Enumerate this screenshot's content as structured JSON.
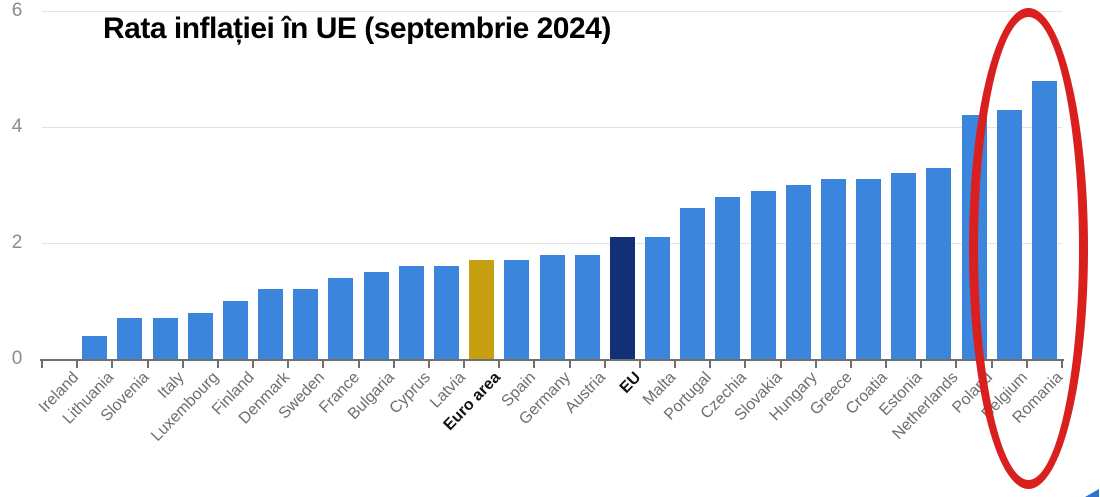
{
  "chart_data": {
    "type": "bar",
    "title": "Rata inflației în UE (septembrie 2024)",
    "xlabel": "",
    "ylabel": "",
    "ylim": [
      0,
      6
    ],
    "yticks": [
      0,
      2,
      4,
      6
    ],
    "grid": true,
    "unit": "percent",
    "legend": "none",
    "categories": [
      "Ireland",
      "Lithuania",
      "Slovenia",
      "Italy",
      "Luxembourg",
      "Finland",
      "Denmark",
      "Sweden",
      "France",
      "Bulgaria",
      "Cyprus",
      "Latvia",
      "Euro area",
      "Spain",
      "Germany",
      "Austria",
      "EU",
      "Malta",
      "Portugal",
      "Czechia",
      "Slovakia",
      "Hungary",
      "Greece",
      "Croatia",
      "Estonia",
      "Netherlands",
      "Poland",
      "Belgium",
      "Romania"
    ],
    "values": [
      0,
      0.4,
      0.7,
      0.7,
      0.8,
      1.0,
      1.2,
      1.2,
      1.4,
      1.5,
      1.6,
      1.6,
      1.7,
      1.7,
      1.8,
      1.8,
      2.1,
      2.1,
      2.6,
      2.8,
      2.9,
      3.0,
      3.1,
      3.1,
      3.2,
      3.3,
      4.2,
      4.3,
      4.8
    ],
    "emphasized_categories": [
      "Euro area",
      "EU"
    ],
    "annotation": {
      "shape": "ellipse",
      "circled_categories": [
        "Belgium",
        "Romania"
      ]
    }
  },
  "colors": {
    "bar_default": "#3c85dc",
    "bar_euro_area": "#c6a010",
    "bar_eu": "#122f78",
    "annotation_red": "#da1f1f",
    "gridline": "#e3e3e3",
    "axis": "#6f6f6f",
    "y_label_gray": "#8c8c8c",
    "x_label_gray": "#6e6e6e",
    "title_black": "#000000",
    "corner_triangle_blue": "#2e74cf"
  }
}
